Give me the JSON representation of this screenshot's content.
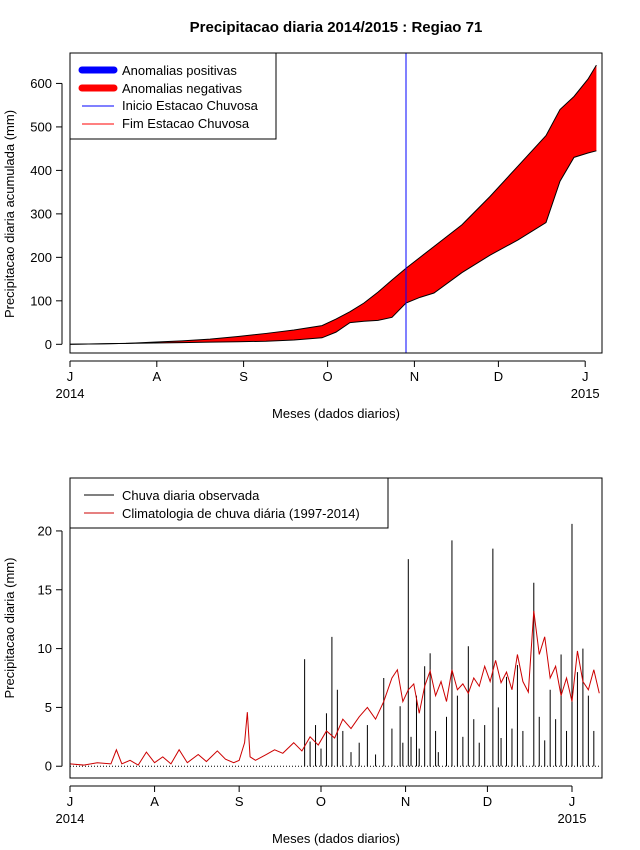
{
  "title": "Precipitacao diaria 2014/2015 : Regiao 71",
  "chart_data": [
    {
      "type": "area",
      "ylabel": "Precipitacao diaria acumulada (mm)",
      "xlabel": "Meses (dados diarios)",
      "xlim": [
        0,
        190
      ],
      "ylim": [
        -20,
        670
      ],
      "yticks": [
        0,
        100,
        200,
        300,
        400,
        500,
        600
      ],
      "month_ticks": [
        {
          "day": 0,
          "label": "J"
        },
        {
          "day": 31,
          "label": "A"
        },
        {
          "day": 62,
          "label": "S"
        },
        {
          "day": 92,
          "label": "O"
        },
        {
          "day": 123,
          "label": "N"
        },
        {
          "day": 153,
          "label": "D"
        },
        {
          "day": 184,
          "label": "J"
        }
      ],
      "year_labels": [
        {
          "day": 0,
          "label": "2014"
        },
        {
          "day": 184,
          "label": "2015"
        }
      ],
      "wet_season_start_day": 120,
      "legend": [
        {
          "label": "Anomalias positivas",
          "color": "#0000ff",
          "style": "thick"
        },
        {
          "label": "Anomalias negativas",
          "color": "#ff0000",
          "style": "thick"
        },
        {
          "label": "Inicio Estacao Chuvosa",
          "color": "#0000ff",
          "style": "thin"
        },
        {
          "label": "Fim Estacao Chuvosa",
          "color": "#ff0000",
          "style": "thin"
        }
      ],
      "days": [
        0,
        10,
        20,
        30,
        40,
        50,
        60,
        70,
        80,
        90,
        95,
        100,
        105,
        110,
        115,
        120,
        125,
        130,
        140,
        150,
        160,
        170,
        175,
        180,
        185,
        188
      ],
      "series": [
        {
          "name": "Climatologia acumulada",
          "values": [
            0,
            1,
            2,
            5,
            8,
            12,
            18,
            25,
            33,
            43,
            58,
            75,
            95,
            120,
            148,
            175,
            200,
            225,
            275,
            340,
            410,
            480,
            540,
            570,
            610,
            642
          ]
        },
        {
          "name": "Observado acumulado",
          "values": [
            0,
            1,
            2,
            3,
            4,
            5,
            6,
            7,
            10,
            15,
            28,
            50,
            53,
            55,
            62,
            95,
            108,
            118,
            165,
            205,
            240,
            280,
            375,
            430,
            440,
            445
          ]
        }
      ]
    },
    {
      "type": "line",
      "ylabel": "Precipitacao diaria (mm)",
      "xlabel": "Meses (dados diarios)",
      "xlim": [
        0,
        195
      ],
      "ylim": [
        -1,
        24.5
      ],
      "yticks": [
        0,
        5,
        10,
        15,
        20
      ],
      "month_ticks": [
        {
          "day": 0,
          "label": "J"
        },
        {
          "day": 31,
          "label": "A"
        },
        {
          "day": 62,
          "label": "S"
        },
        {
          "day": 92,
          "label": "O"
        },
        {
          "day": 123,
          "label": "N"
        },
        {
          "day": 153,
          "label": "D"
        },
        {
          "day": 184,
          "label": "J"
        }
      ],
      "year_labels": [
        {
          "day": 0,
          "label": "2014"
        },
        {
          "day": 184,
          "label": "2015"
        }
      ],
      "legend": [
        {
          "label": "Chuva diaria observada",
          "color": "#000000"
        },
        {
          "label": "Climatologia de chuva diária (1997-2014)",
          "color": "#cc0000"
        }
      ],
      "observed_daily": [
        [
          86,
          9.1
        ],
        [
          88,
          2.1
        ],
        [
          90,
          3.5
        ],
        [
          92,
          1.5
        ],
        [
          94,
          4.5
        ],
        [
          96,
          11
        ],
        [
          98,
          6.5
        ],
        [
          100,
          3
        ],
        [
          103,
          1.2
        ],
        [
          106,
          2
        ],
        [
          109,
          3.5
        ],
        [
          112,
          1
        ],
        [
          115,
          7.5
        ],
        [
          118,
          3.2
        ],
        [
          121,
          5.1
        ],
        [
          122,
          2
        ],
        [
          124,
          17.6
        ],
        [
          125,
          2.5
        ],
        [
          127,
          6
        ],
        [
          128,
          1.5
        ],
        [
          130,
          8.5
        ],
        [
          132,
          9.6
        ],
        [
          134,
          3
        ],
        [
          135,
          1.2
        ],
        [
          138,
          4.2
        ],
        [
          140,
          19.2
        ],
        [
          142,
          6
        ],
        [
          144,
          2.5
        ],
        [
          146,
          10.2
        ],
        [
          148,
          4
        ],
        [
          150,
          2
        ],
        [
          152,
          3.5
        ],
        [
          155,
          18.5
        ],
        [
          157,
          5
        ],
        [
          158,
          2.4
        ],
        [
          160,
          7.6
        ],
        [
          162,
          3.2
        ],
        [
          164,
          8.6
        ],
        [
          166,
          3
        ],
        [
          170,
          15.6
        ],
        [
          172,
          4.2
        ],
        [
          174,
          2.2
        ],
        [
          176,
          6.5
        ],
        [
          178,
          4
        ],
        [
          180,
          9.5
        ],
        [
          182,
          3
        ],
        [
          184,
          20.6
        ],
        [
          186,
          8
        ],
        [
          188,
          10
        ],
        [
          190,
          6
        ],
        [
          192,
          3
        ]
      ],
      "climatology_daily": [
        [
          0,
          0.2
        ],
        [
          5,
          0.1
        ],
        [
          10,
          0.3
        ],
        [
          15,
          0.2
        ],
        [
          17,
          1.4
        ],
        [
          19,
          0.2
        ],
        [
          22,
          0.5
        ],
        [
          25,
          0.1
        ],
        [
          28,
          1.2
        ],
        [
          31,
          0.3
        ],
        [
          34,
          0.8
        ],
        [
          37,
          0.2
        ],
        [
          40,
          1.4
        ],
        [
          43,
          0.3
        ],
        [
          47,
          1
        ],
        [
          50,
          0.4
        ],
        [
          54,
          1.3
        ],
        [
          57,
          0.6
        ],
        [
          60,
          0.3
        ],
        [
          62,
          0.5
        ],
        [
          64,
          2
        ],
        [
          65,
          4.6
        ],
        [
          66,
          0.8
        ],
        [
          68,
          0.5
        ],
        [
          72,
          1
        ],
        [
          75,
          1.4
        ],
        [
          78,
          1.1
        ],
        [
          82,
          2
        ],
        [
          85,
          1.3
        ],
        [
          88,
          2.5
        ],
        [
          91,
          1.8
        ],
        [
          94,
          3
        ],
        [
          97,
          2.4
        ],
        [
          100,
          4
        ],
        [
          103,
          3.2
        ],
        [
          106,
          4.2
        ],
        [
          109,
          5
        ],
        [
          112,
          4
        ],
        [
          115,
          5.5
        ],
        [
          118,
          7.5
        ],
        [
          120,
          8.2
        ],
        [
          122,
          5.5
        ],
        [
          124,
          6.5
        ],
        [
          126,
          7
        ],
        [
          128,
          4.5
        ],
        [
          130,
          6.8
        ],
        [
          132,
          8.1
        ],
        [
          134,
          6
        ],
        [
          136,
          7.2
        ],
        [
          138,
          5.5
        ],
        [
          140,
          8.2
        ],
        [
          142,
          6.5
        ],
        [
          144,
          7
        ],
        [
          146,
          6.2
        ],
        [
          148,
          7.5
        ],
        [
          150,
          6.8
        ],
        [
          152,
          8.5
        ],
        [
          154,
          7.2
        ],
        [
          156,
          9
        ],
        [
          158,
          7.1
        ],
        [
          160,
          8
        ],
        [
          162,
          6.5
        ],
        [
          164,
          9.5
        ],
        [
          166,
          7.2
        ],
        [
          168,
          6.3
        ],
        [
          170,
          13.2
        ],
        [
          172,
          9.5
        ],
        [
          174,
          11
        ],
        [
          176,
          7.5
        ],
        [
          178,
          8.5
        ],
        [
          180,
          6
        ],
        [
          182,
          7.5
        ],
        [
          184,
          5.5
        ],
        [
          186,
          9.8
        ],
        [
          188,
          7.2
        ],
        [
          190,
          6.5
        ],
        [
          192,
          8.2
        ],
        [
          194,
          6.2
        ]
      ]
    }
  ]
}
